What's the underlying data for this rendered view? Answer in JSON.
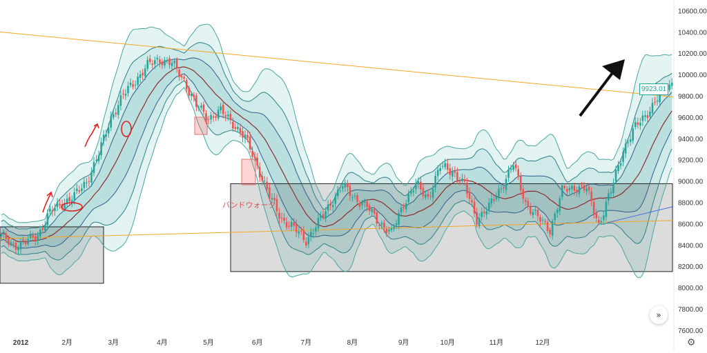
{
  "chart_data": {
    "type": "candlestick",
    "x_tick_labels": [
      "2012",
      "2月",
      "3月",
      "4月",
      "5月",
      "6月",
      "7月",
      "8月",
      "9月",
      "10月",
      "11月",
      "12月"
    ],
    "y_tick_labels": [
      "7600.00",
      "7800.00",
      "8000.00",
      "8200.00",
      "8400.00",
      "8600.00",
      "8800.00",
      "9000.00",
      "9200.00",
      "9400.00",
      "9600.00",
      "9800.00",
      "10000.00",
      "10200.00",
      "10400.00",
      "10600.00"
    ],
    "ylim": [
      7560,
      10700
    ],
    "last_price": "9923.01",
    "annotation_text": "バンドウォーク",
    "bollinger_bands": "±1σ, ±2σ, ±3σ around a middle moving average",
    "price_path": [
      [
        0,
        8480
      ],
      [
        5,
        8400
      ],
      [
        10,
        8420
      ],
      [
        15,
        8500
      ],
      [
        20,
        8700
      ],
      [
        25,
        8800
      ],
      [
        30,
        8850
      ],
      [
        35,
        9000
      ],
      [
        40,
        9250
      ],
      [
        45,
        9600
      ],
      [
        50,
        9800
      ],
      [
        55,
        9950
      ],
      [
        60,
        10080
      ],
      [
        65,
        10150
      ],
      [
        70,
        10100
      ],
      [
        75,
        9950
      ],
      [
        80,
        9700
      ],
      [
        85,
        9600
      ],
      [
        90,
        9650
      ],
      [
        95,
        9550
      ],
      [
        100,
        9400
      ],
      [
        105,
        9150
      ],
      [
        110,
        8850
      ],
      [
        115,
        8650
      ],
      [
        120,
        8550
      ],
      [
        125,
        8450
      ],
      [
        130,
        8600
      ],
      [
        135,
        8800
      ],
      [
        140,
        8950
      ],
      [
        145,
        8850
      ],
      [
        150,
        8750
      ],
      [
        155,
        8620
      ],
      [
        160,
        8500
      ],
      [
        165,
        8800
      ],
      [
        170,
        8960
      ],
      [
        175,
        8850
      ],
      [
        180,
        9130
      ],
      [
        185,
        9100
      ],
      [
        190,
        8950
      ],
      [
        195,
        8650
      ],
      [
        200,
        8750
      ],
      [
        205,
        8950
      ],
      [
        210,
        9150
      ],
      [
        215,
        8800
      ],
      [
        220,
        8650
      ],
      [
        225,
        8550
      ],
      [
        230,
        8900
      ],
      [
        235,
        8950
      ],
      [
        240,
        8920
      ],
      [
        245,
        8600
      ],
      [
        250,
        8900
      ],
      [
        255,
        9300
      ],
      [
        260,
        9500
      ],
      [
        265,
        9650
      ],
      [
        270,
        9800
      ],
      [
        275,
        9923
      ]
    ],
    "colors": {
      "up": "#26a69a",
      "down": "#ef5350",
      "middle_band": "#8b2c2c",
      "sigma1": "#2f5e8a",
      "sigma2": "#2a7f8a",
      "sigma3": "#4aa5a0",
      "fill_inner": "#b9e0de",
      "fill_outer": "#e3f4f3",
      "trend": "#f5a623",
      "marker": "#e02020"
    }
  }
}
